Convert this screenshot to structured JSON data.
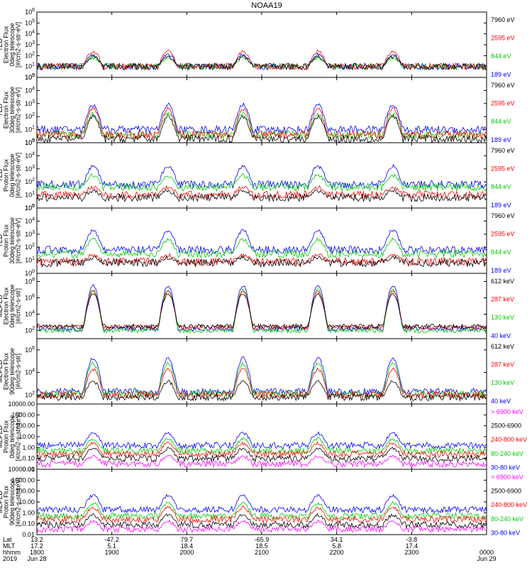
{
  "title": "NOAA19",
  "chart_data": [
    {
      "type": "line",
      "panel_label": "TED Electron Flux 0deg telescope [#/cm2-s-str-eV]",
      "ylabel_lines": [
        "TED",
        "Electron Flux",
        "0deg telescope",
        "[#/cm2-s-str-eV]"
      ],
      "ytick_labels": [
        "10^0",
        "10^1",
        "10^2",
        "10^3",
        "10^4",
        "10^5",
        "10^6"
      ],
      "ylim_exponent": [
        0,
        6
      ],
      "scale": "log",
      "series": [
        {
          "name": "7960 eV",
          "color": "#000000",
          "base_exponent": 1.0,
          "peak_exponent": 1.9
        },
        {
          "name": "2595 eV",
          "color": "#ff0000",
          "base_exponent": 1.0,
          "peak_exponent": 2.4
        },
        {
          "name": "844 eV",
          "color": "#00cc00",
          "base_exponent": 1.0,
          "peak_exponent": 1.8
        },
        {
          "name": "189 eV",
          "color": "#0000ff",
          "base_exponent": 1.0,
          "peak_exponent": 2.1
        }
      ]
    },
    {
      "type": "line",
      "panel_label": "TED Electron Flux 30deg telescope [#/cm2-s-str-eV]",
      "ylabel_lines": [
        "TED",
        "Electron Flux",
        "30deg telescope",
        "[#/cm2-s-str-eV]"
      ],
      "ytick_labels": [
        "10^0",
        "10^1",
        "10^2",
        "10^3",
        "10^4",
        "10^5"
      ],
      "ylim_exponent": [
        0,
        5
      ],
      "scale": "log",
      "series": [
        {
          "name": "7960 eV",
          "color": "#000000",
          "base_exponent": 0.3,
          "peak_exponent": 2.0
        },
        {
          "name": "2595 eV",
          "color": "#ff0000",
          "base_exponent": 0.6,
          "peak_exponent": 2.6
        },
        {
          "name": "844 eV",
          "color": "#00cc00",
          "base_exponent": 0.6,
          "peak_exponent": 2.2
        },
        {
          "name": "189 eV",
          "color": "#0000ff",
          "base_exponent": 1.0,
          "peak_exponent": 2.9
        }
      ]
    },
    {
      "type": "line",
      "panel_label": "TED Proton Flux 0deg telescope [#/cm2-s-str-eV]",
      "ylabel_lines": [
        "TED",
        "Proton Flux",
        "0deg telescope",
        "[#/cm2-s-str-eV]"
      ],
      "ytick_labels": [
        "10^0",
        "10^1",
        "10^2",
        "10^3",
        "10^4",
        "10^5"
      ],
      "ylim_exponent": [
        0,
        5
      ],
      "scale": "log",
      "series": [
        {
          "name": "7960 eV",
          "color": "#000000",
          "base_exponent": 0.8,
          "peak_exponent": 1.3
        },
        {
          "name": "2595 eV",
          "color": "#ff0000",
          "base_exponent": 1.0,
          "peak_exponent": 1.6
        },
        {
          "name": "844 eV",
          "color": "#00cc00",
          "base_exponent": 1.6,
          "peak_exponent": 2.5
        },
        {
          "name": "189 eV",
          "color": "#0000ff",
          "base_exponent": 1.8,
          "peak_exponent": 3.2
        }
      ]
    },
    {
      "type": "line",
      "panel_label": "TED Proton Flux 30deg telescope [#/cm2-s-str-eV]",
      "ylabel_lines": [
        "TED",
        "Proton Flux",
        "30deg telescope",
        "[#/cm2-s-str-eV]"
      ],
      "ytick_labels": [
        "10^0",
        "10^1",
        "10^2",
        "10^3",
        "10^4",
        "10^5"
      ],
      "ylim_exponent": [
        0,
        5
      ],
      "scale": "log",
      "series": [
        {
          "name": "7960 eV",
          "color": "#000000",
          "base_exponent": 0.8,
          "peak_exponent": 1.2
        },
        {
          "name": "2595 eV",
          "color": "#ff0000",
          "base_exponent": 0.9,
          "peak_exponent": 1.4
        },
        {
          "name": "844 eV",
          "color": "#00cc00",
          "base_exponent": 1.5,
          "peak_exponent": 2.6
        },
        {
          "name": "189 eV",
          "color": "#0000ff",
          "base_exponent": 1.8,
          "peak_exponent": 3.3
        }
      ]
    },
    {
      "type": "line",
      "panel_label": "MEPED Electron Flux 0deg telescope [#/cm2-s-str]",
      "ylabel_lines": [
        "MEPED",
        "Electron Flux",
        "0deg telescope",
        "[#/cm2-s-str]"
      ],
      "ytick_labels": [
        "10^2",
        "10^4",
        "10^6",
        "10^8"
      ],
      "ylim_exponent": [
        1,
        9
      ],
      "scale": "log",
      "series": [
        {
          "name": "612 keV",
          "color": "#000000",
          "base_exponent": 2.5,
          "peak_exponent": 6.5
        },
        {
          "name": "287 keV",
          "color": "#ff0000",
          "base_exponent": 2.4,
          "peak_exponent": 6.8
        },
        {
          "name": "130 keV",
          "color": "#00cc00",
          "base_exponent": 2.0,
          "peak_exponent": 7.0
        },
        {
          "name": "40 keV",
          "color": "#0000ff",
          "base_exponent": 2.2,
          "peak_exponent": 7.5
        }
      ]
    },
    {
      "type": "line",
      "panel_label": "MEPED Electron Flux 90deg telescope [#/cm2-s-str]",
      "ylabel_lines": [
        "MEPED",
        "Electron Flux",
        "90deg telescope",
        "[#/cm2-s-str]"
      ],
      "ytick_labels": [
        "10^2",
        "10^4",
        "10^6"
      ],
      "ylim_exponent": [
        1.2,
        7
      ],
      "scale": "log",
      "series": [
        {
          "name": "612 keV",
          "color": "#000000",
          "base_exponent": 1.8,
          "peak_exponent": 3.2
        },
        {
          "name": "287 keV",
          "color": "#ff0000",
          "base_exponent": 2.0,
          "peak_exponent": 4.3
        },
        {
          "name": "130 keV",
          "color": "#00cc00",
          "base_exponent": 2.1,
          "peak_exponent": 4.8
        },
        {
          "name": "40 keV",
          "color": "#0000ff",
          "base_exponent": 2.3,
          "peak_exponent": 5.3
        }
      ]
    },
    {
      "type": "line",
      "panel_label": "MEPED Proton Flux 0deg telescope [#/cm2-s-str-keV]",
      "ylabel_lines": [
        "MEPED",
        "Proton Flux",
        "0deg telescope",
        "[#/cm2-s-str-keV]"
      ],
      "ytick_labels": [
        "0.01",
        "0.10",
        "1.00",
        "10.00",
        "100.00",
        "1000.00",
        "10000.00"
      ],
      "ylim_exponent": [
        -2,
        4
      ],
      "scale": "log",
      "series": [
        {
          "name": "> 6900 keV",
          "color": "#ff00ff",
          "base_exponent": -1.5,
          "peak_exponent": -0.8
        },
        {
          "name": "2500-6900",
          "color": "#000000",
          "base_exponent": -1.0,
          "peak_exponent": -0.1
        },
        {
          "name": "240-800 keV",
          "color": "#ff0000",
          "base_exponent": -0.6,
          "peak_exponent": 0.4
        },
        {
          "name": "80-240 keV",
          "color": "#00cc00",
          "base_exponent": -0.3,
          "peak_exponent": 0.8
        },
        {
          "name": "30-80 keV",
          "color": "#0000ff",
          "base_exponent": 0.2,
          "peak_exponent": 1.3
        }
      ]
    },
    {
      "type": "line",
      "panel_label": "MEPED Proton Flux 90deg telescope [#/cm2-s-str-keV]",
      "ylabel_lines": [
        "MEPED",
        "Proton Flux",
        "90deg telescope",
        "[#/cm2-s-str-keV]"
      ],
      "ytick_labels": [
        "0.01",
        "0.10",
        "1.00",
        "10.00",
        "100.00",
        "1000.00",
        "10000.00"
      ],
      "ylim_exponent": [
        -2,
        4
      ],
      "scale": "log",
      "series": [
        {
          "name": "> 6900 keV",
          "color": "#ff00ff",
          "base_exponent": -1.5,
          "peak_exponent": -0.8
        },
        {
          "name": "2500-6900",
          "color": "#000000",
          "base_exponent": -1.1,
          "peak_exponent": -0.2
        },
        {
          "name": "240-800 keV",
          "color": "#ff0000",
          "base_exponent": -0.6,
          "peak_exponent": 0.5
        },
        {
          "name": "80-240 keV",
          "color": "#00cc00",
          "base_exponent": -0.3,
          "peak_exponent": 0.9
        },
        {
          "name": "30-80 keV",
          "color": "#0000ff",
          "base_exponent": 0.3,
          "peak_exponent": 1.6
        }
      ]
    }
  ],
  "bottom_axis": {
    "row_labels": [
      "Lat",
      "MLT",
      "hhmm",
      "2019"
    ],
    "ticks": [
      {
        "lat": "13.2",
        "mlt": "17.2",
        "hhmm": "1800",
        "date": "Jun 28"
      },
      {
        "lat": "-47.2",
        "mlt": "5.1",
        "hhmm": "1900",
        "date": ""
      },
      {
        "lat": "79.7",
        "mlt": "18.4",
        "hhmm": "2000",
        "date": ""
      },
      {
        "lat": "-65.9",
        "mlt": "18.5",
        "hhmm": "2100",
        "date": ""
      },
      {
        "lat": "34.1",
        "mlt": "5.8",
        "hhmm": "2200",
        "date": ""
      },
      {
        "lat": "-3.8",
        "mlt": "17.4",
        "hhmm": "2300",
        "date": ""
      },
      {
        "lat": "",
        "mlt": "",
        "hhmm": "0000",
        "date": "Jun 29"
      }
    ],
    "pass_centers_hhmm": [
      "1900",
      "2000",
      "2100",
      "2200",
      "2300"
    ]
  }
}
